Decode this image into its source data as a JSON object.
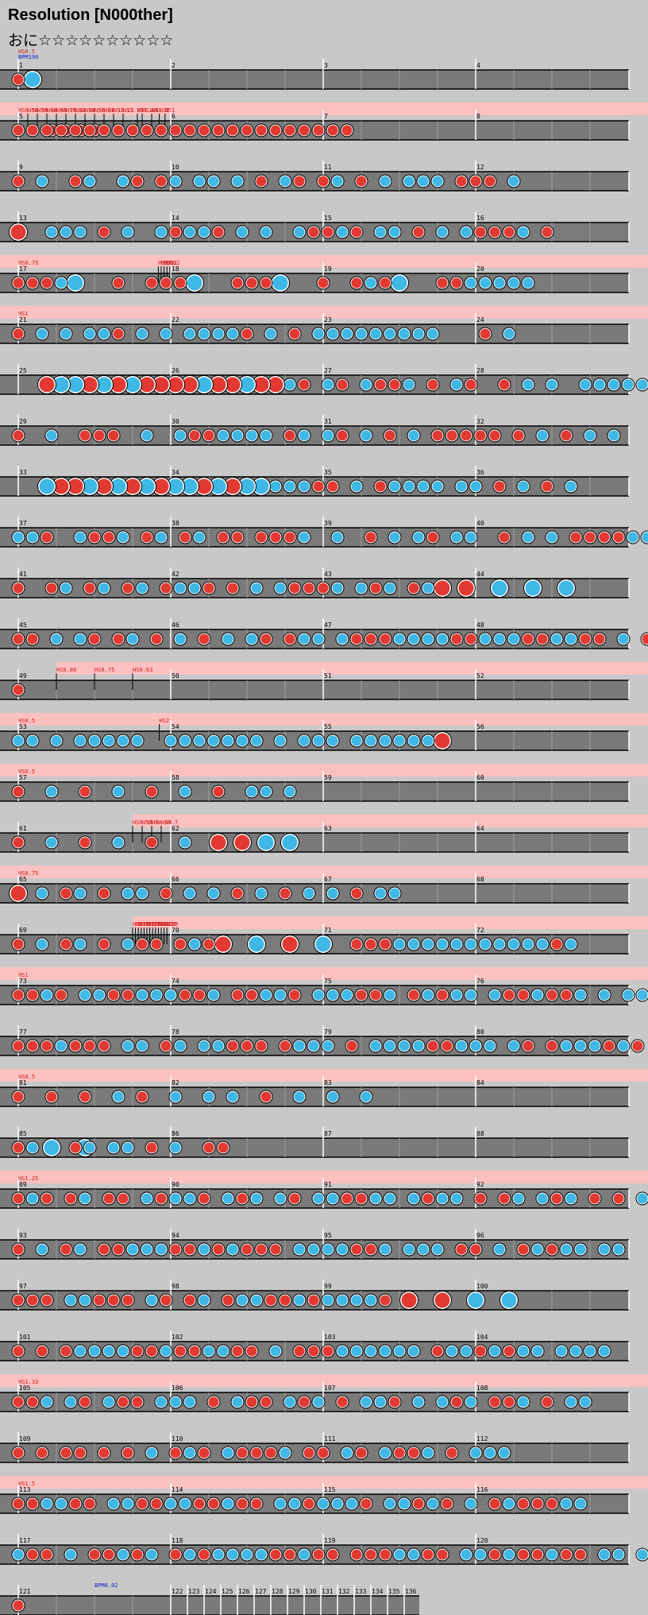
{
  "chart": {
    "title": "Resolution [N000ther]",
    "course_label": "おに",
    "stars": "☆☆☆☆☆☆☆☆☆☆",
    "initial_scroll": "HS0.5",
    "initial_bpm": "BPM190"
  },
  "rows": [
    {
      "m": [
        1,
        2,
        3,
        4
      ],
      "hs": [],
      "bpm": [],
      "n": "1,20,b4,a20,b8,a20,b4,a20,b4"
    },
    {
      "m": [
        5,
        6,
        7,
        8
      ],
      "hs": [
        [
          "HS0.54",
          0
        ],
        [
          "HS0.59",
          1
        ],
        [
          "HS0.64",
          2
        ],
        [
          "HS0.69",
          3
        ],
        [
          "HS0.75",
          4
        ],
        [
          "HS0.82",
          5
        ],
        [
          "HS0.88",
          6
        ],
        [
          "HS0.96",
          7
        ],
        [
          "HS1.04",
          8
        ],
        [
          "HS1.13",
          9
        ],
        [
          "HS1.23",
          10
        ],
        [
          "HS1.33",
          11
        ],
        [
          "HS1.44",
          12.5
        ],
        [
          "HS1.5",
          13
        ],
        [
          "HS1.6",
          14
        ],
        [
          "HS2",
          14.8
        ],
        [
          "HS1",
          15.4
        ]
      ],
      "bpm": [],
      "n": "1,1,1,1,1,1,1,1,1,1,1,1,1,1,1,1,1,1,1,1,1,1,1,1,b4,a10,1,1,1,1"
    },
    {
      "m": [
        9,
        10,
        11,
        12
      ],
      "hs": [],
      "bpm": [],
      "n": "1,a4,2,a8,1,2,a8,2,1,a4,1,2,a4,2,2,a4,2,a4,1,a4,2,1,a4,1,2,a4,1,a4,2,a4,2,2,2,a4,1,1,1,a4,2"
    },
    {
      "m": [
        13,
        14,
        15,
        16
      ],
      "hs": [],
      "bpm": [],
      "n": "3,a8,2,2,2,a4,1,a4,2,a8,2,1,2,2,1,a4,2,a4,2,a8,2,1,1,2,1,a4,2,2,a4,1,a4,2,a4,2,1,1,1,2,a4,1"
    },
    {
      "m": [
        17,
        18,
        19,
        20
      ],
      "hs": [
        [
          "HS0.75",
          0
        ],
        [
          "HS2",
          14.7
        ],
        [
          "HS2",
          15
        ],
        [
          "HS2",
          15.3
        ],
        [
          "HS2",
          15.6
        ],
        [
          "HS2",
          15.9
        ]
      ],
      "bpm": [],
      "n": "1,1,1,2,4,a12,1,a8,1,1,1,4,a12,1,1,1,4,a12,1,a8,1,2,1,4,a12,1,1,2,2,2,2,2"
    },
    {
      "m": [
        21,
        22,
        23,
        24
      ],
      "hs": [
        [
          "HS1",
          0
        ]
      ],
      "bpm": [],
      "n": "1,a4,2,a4,2,a4,2,2,1,a4,2,a4,2,a4,2,2,2,2,1,a4,2,a4,1,a4,2,2,2,2,2,2,2,2,2,a16,1,a4,2"
    },
    {
      "m": [
        25,
        26,
        27,
        28
      ],
      "hs": [],
      "bpm": [],
      "n": "b12,3,4,4,3,4,3,4,3,3,3,3,4,3,3,4,3,3,2,1,a4,2,1,a4,2,1,1,2,a4,1,a4,2,1,a8,1,a4,2,a4,2,a8,2,2,2,2,2"
    },
    {
      "m": [
        29,
        30,
        31,
        32
      ],
      "hs": [],
      "bpm": [],
      "n": "1,a8,2,a8,1,1,1,a8,2,a8,2,1,1,2,2,2,2,a4,1,2,a4,2,1,a4,2,a4,1,a4,2,a4,1,1,1,1,1,a4,1,a4,2,a4,1,a4,2,a4,2"
    },
    {
      "m": [
        33,
        34,
        35,
        36
      ],
      "hs": [],
      "bpm": [],
      "n": "b12,4,3,3,4,3,4,3,4,3,4,4,3,4,3,4,4,2,2,2,1,1,a4,2,a4,1,2,2,2,2,a4,2,2,a4,1,a4,2,a4,1,a4,2"
    },
    {
      "m": [
        37,
        38,
        39,
        40
      ],
      "hs": [],
      "bpm": [],
      "n": "2,2,1,a8,2,1,1,2,a4,1,2,a4,1,2,a4,1,1,a4,1,1,1,2,a8,2,a8,1,a4,2,a4,2,1,a4,2,2,a8,1,a4,2,a4,2,a4,1,1,1,1,2,2,2,2"
    },
    {
      "m": [
        41,
        42,
        43,
        44
      ],
      "hs": [],
      "bpm": [],
      "n": "1,a8,1,2,a4,1,2,a4,1,2,a4,1,2,2,1,a4,1,a4,2,a4,2,1,1,1,2,a4,2,1,2,a4,1,2,3,a4,3,a8,4,a8,4,a8,4"
    },
    {
      "m": [
        45,
        46,
        47,
        48
      ],
      "hs": [],
      "bpm": [],
      "n": "1,1,a4,2,a4,2,1,a4,1,2,a4,1,a4,2,a4,1,a4,2,a4,2,1,a4,1,2,2,a4,2,1,1,1,2,2,2,2,1,1,2,2,2,1,1,2,2,1,1,a4,2,a4,1,2,a4,1,2,a4,2,1,1,2,2"
    },
    {
      "m": [
        49,
        50,
        51,
        52
      ],
      "hs": [
        [
          "HS0.88",
          4
        ],
        [
          "HS0.75",
          8
        ],
        [
          "HS0.63",
          12
        ]
      ],
      "bpm": [],
      "n": "1"
    },
    {
      "m": [
        53,
        54,
        55,
        56
      ],
      "hs": [
        [
          "HS0.5",
          0
        ],
        [
          "HS2",
          14.8
        ]
      ],
      "bpm": [],
      "n": "2,2,a4,2,a4,2,2,2,2,2,a8,2,2,2,2,2,2,2,a4,2,a4,2,2,2,a4,2,2,2,2,2,2,3"
    },
    {
      "m": [
        57,
        58,
        59,
        60
      ],
      "hs": [
        [
          "HS0.5",
          0
        ]
      ],
      "bpm": [],
      "n": "1,a8,2,a8,1,a8,2,a8,1,a8,2,a8,1,a8,2,2,a4,2"
    },
    {
      "m": [
        61,
        62,
        63,
        64
      ],
      "hs": [
        [
          "HS0.55",
          12
        ],
        [
          "HS0.6",
          13
        ],
        [
          "HS0.65",
          14
        ],
        [
          "HS0.7",
          15
        ]
      ],
      "bpm": [],
      "n": "1,a8,2,a8,1,a8,2,a8,1,a8,2,a8,3,a4,3,a4,4,a4,4"
    },
    {
      "m": [
        65,
        66,
        67,
        68
      ],
      "hs": [
        [
          "HS0.75",
          0
        ]
      ],
      "bpm": [],
      "n": "3,a4,2,a4,1,2,a4,1,a4,2,2,a4,1,a4,2,a4,2,a4,1,a4,2,a4,1,a4,2,a4,2,a4,1,a4,2,2"
    },
    {
      "m": [
        69,
        70,
        71,
        72
      ],
      "hs": [
        [
          "HS0.9",
          12
        ],
        [
          "HS1",
          12.3
        ],
        [
          "HS1.1",
          12.6
        ],
        [
          "HS1.2",
          12.9
        ],
        [
          "HS1.3",
          13.2
        ],
        [
          "HS1.4",
          13.5
        ],
        [
          "HS1.5",
          13.8
        ],
        [
          "HS1.6",
          14.1
        ],
        [
          "HS1.7",
          14.4
        ],
        [
          "HS1.8",
          14.7
        ],
        [
          "HS1.9",
          15
        ],
        [
          "HS2",
          15.3
        ],
        [
          "HS2",
          15.6
        ]
      ],
      "bpm": [],
      "n": "1,a4,2,a4,1,2,a4,1,a4,2,1,1,a4,1,2,1,3,a8,4,a8,3,a8,4,a8,1,1,1,2,2,2,2,2,2,2,2,2,2,2,1,2"
    },
    {
      "m": [
        73,
        74,
        75,
        76
      ],
      "hs": [
        [
          "HS1",
          0
        ]
      ],
      "bpm": [],
      "n": "1,1,2,1,a4,2,2,1,1,2,2,2,1,1,2,a4,1,1,2,2,1,a4,2,2,2,1,1,2,a4,1,2,1,2,2,a4,2,1,1,2,1,1,2,a4,2,a4,2,2"
    },
    {
      "m": [
        77,
        78,
        79,
        80
      ],
      "hs": [],
      "bpm": [],
      "n": "1,1,1,2,1,1,1,a4,2,2,a4,1,2,a4,2,2,1,1,1,a4,1,2,2,2,a4,1,a4,2,2,2,2,1,1,2,2,2,a4,2,1,a4,1,2,2,2,1,2,1,a4,2,a4,1,2,2,2,2"
    },
    {
      "m": [
        81,
        82,
        83,
        84
      ],
      "hs": [
        [
          "HS0.5",
          0
        ]
      ],
      "bpm": [],
      "n": "1,a8,1,a8,1,a8,2,a4,1,a8,2,a8,2,a4,2,a8,1,a8,2,a8,2,a8,2"
    },
    {
      "m": [
        85,
        86,
        87,
        88
      ],
      "hs": [],
      "bpm": [],
      "n": "1,2,a12,1,2,a4,2,2,a4,1,a4,2,a8,1,1,b14,4,a8,4"
    },
    {
      "m": [
        89,
        90,
        91,
        92
      ],
      "hs": [
        [
          "HS1.25",
          0
        ]
      ],
      "bpm": [],
      "n": "1,2,1,a4,1,2,a4,1,1,a4,2,1,2,2,1,a4,2,1,2,a4,2,1,a4,2,2,1,1,2,2,a4,2,1,2,2,a4,1,a4,1,2,a4,2,1,2,a4,1,a4,1,a4,2,2,a4,1,a4,2,2"
    },
    {
      "m": [
        93,
        94,
        95,
        96
      ],
      "hs": [],
      "bpm": [],
      "n": "1,a4,2,a4,1,2,a4,1,1,2,2,2,1,1,2,1,2,1,1,1,a4,2,2,2,2,1,1,2,a4,2,2,2,a4,1,1,a4,2,a4,1,2,1,2,2,a4,2,2"
    },
    {
      "m": [
        97,
        98,
        99,
        100
      ],
      "hs": [],
      "bpm": [],
      "n": "1,1,1,a4,2,2,1,1,1,a4,2,1,a4,1,2,a4,1,2,2,1,1,2,1,2,2,2,2,1,a4,3,a8,3,a8,4,a8,4"
    },
    {
      "m": [
        101,
        102,
        103,
        104
      ],
      "hs": [],
      "bpm": [],
      "n": "1,a4,1,a4,1,2,2,2,2,1,1,2,1,1,2,2,1,1,a4,2,a4,1,1,1,2,2,2,2,2,2,a4,1,2,2,1,2,1,2,2,a4,2,2,2,2"
    },
    {
      "m": [
        105,
        106,
        107,
        108
      ],
      "hs": [
        [
          "HS1.33",
          0
        ]
      ],
      "bpm": [],
      "n": "1,1,2,a4,2,1,a4,2,1,1,a4,2,2,2,a4,1,a4,2,1,1,a4,2,1,2,a4,1,a4,2,2,1,a4,2,a4,2,1,2,a4,1,1,2,a4,1,a4,2,2"
    },
    {
      "m": [
        109,
        110,
        111,
        112
      ],
      "hs": [],
      "bpm": [],
      "n": "1,a4,1,a4,1,1,a4,1,a4,1,a4,2,a4,1,2,1,a4,2,1,1,1,2,a4,1,1,a4,2,1,a4,2,1,1,2,a4,1,a4,2,2,2"
    },
    {
      "m": [
        113,
        114,
        115,
        116
      ],
      "hs": [
        [
          "HS1.5",
          0
        ]
      ],
      "bpm": [],
      "n": "1,1,2,2,1,1,a4,2,2,1,1,2,2,1,1,2,1,1,a4,2,2,1,2,2,2,1,a4,2,2,1,2,1,a4,2,a4,1,2,1,1,1,2,2"
    },
    {
      "m": [
        117,
        118,
        119,
        120
      ],
      "hs": [],
      "bpm": [],
      "n": "2,1,1,a4,2,a4,1,1,2,1,2,a4,1,2,1,2,2,2,2,1,1,2,1,1,a4,1,1,1,2,2,1,1,a4,2,2,1,2,1,1,2,1,1,a4,2,2,a4,2,2"
    },
    {
      "m": [
        121
      ],
      "hs": [],
      "bpm": [
        [
          "BPM0.02",
          8
        ]
      ],
      "n": "1",
      "special": true
    }
  ],
  "final_measures": [
    "122",
    "123",
    "124",
    "125",
    "126",
    "127",
    "128",
    "129",
    "130",
    "131",
    "132",
    "133",
    "134",
    "135",
    "136"
  ],
  "colors": {
    "don": "#e23a32",
    "ka": "#3fb8e6",
    "lane": "#7a7a7a",
    "lane_alt": "#707070",
    "hs_band": "#fbc0c0",
    "hs_text": "#d02020",
    "bpm_text": "#1a1ad0",
    "background": "#c8c8c8"
  }
}
